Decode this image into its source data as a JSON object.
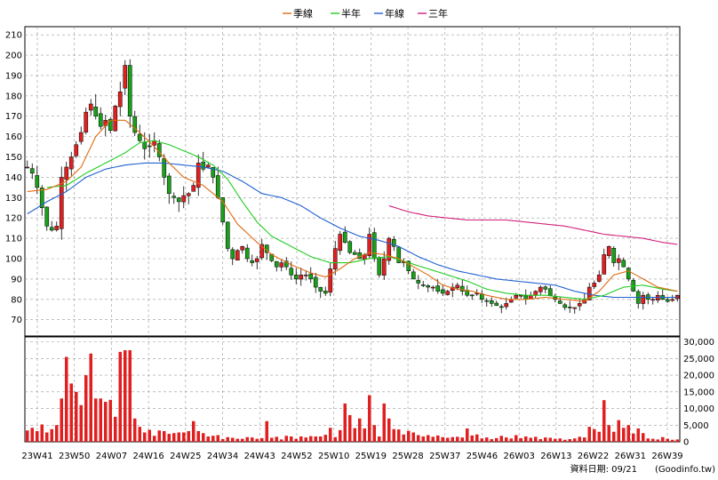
{
  "chart_data": {
    "type": "candlestick",
    "legend": {
      "position": "top-center",
      "items": [
        {
          "name": "季線",
          "color": "#e06a10"
        },
        {
          "name": "半年",
          "color": "#22cc22"
        },
        {
          "name": "年線",
          "color": "#2060d0"
        },
        {
          "name": "三年",
          "color": "#d0207a"
        }
      ]
    },
    "price_axis": {
      "ticks": [
        70,
        80,
        90,
        100,
        110,
        120,
        130,
        140,
        150,
        160,
        170,
        180,
        190,
        200,
        210
      ],
      "ylim": [
        62,
        214
      ]
    },
    "volume_axis": {
      "ticks": [
        0,
        5000,
        10000,
        15000,
        20000,
        25000,
        30000
      ],
      "tick_labels": [
        "0",
        "5,000",
        "10,000",
        "15,000",
        "20,000",
        "25,000",
        "30,000"
      ],
      "ylim": [
        0,
        31500
      ]
    },
    "x_ticks": [
      "23W41",
      "23W50",
      "24W07",
      "24W16",
      "24W25",
      "24W34",
      "24W43",
      "24W52",
      "25W10",
      "25W19",
      "25W28",
      "25W37",
      "25W46",
      "26W03",
      "26W13",
      "26W22",
      "26W31",
      "26W39"
    ],
    "colors": {
      "up": "#e02020",
      "down": "#18a018",
      "volume": "#e02020",
      "grid": "#9a9a9a"
    },
    "grid": true,
    "price_anchors": [
      [
        0,
        145
      ],
      [
        1,
        142
      ],
      [
        2,
        135
      ],
      [
        3,
        125
      ],
      [
        4,
        116
      ],
      [
        5,
        114
      ],
      [
        6,
        116
      ],
      [
        7,
        140
      ],
      [
        8,
        145
      ],
      [
        9,
        150
      ],
      [
        10,
        156
      ],
      [
        11,
        162
      ],
      [
        12,
        172
      ],
      [
        13,
        176
      ],
      [
        14,
        170
      ],
      [
        15,
        165
      ],
      [
        16,
        168
      ],
      [
        17,
        163
      ],
      [
        18,
        175
      ],
      [
        19,
        182
      ],
      [
        20,
        195
      ],
      [
        21,
        170
      ],
      [
        22,
        162
      ],
      [
        23,
        158
      ],
      [
        24,
        154
      ],
      [
        25,
        155
      ],
      [
        26,
        158
      ],
      [
        27,
        150
      ],
      [
        28,
        140
      ],
      [
        29,
        132
      ],
      [
        30,
        130
      ],
      [
        31,
        128
      ],
      [
        32,
        131
      ],
      [
        33,
        132
      ],
      [
        34,
        136
      ],
      [
        35,
        147
      ],
      [
        36,
        144
      ],
      [
        37,
        146
      ],
      [
        38,
        140
      ],
      [
        39,
        130
      ],
      [
        40,
        118
      ],
      [
        41,
        105
      ],
      [
        42,
        100
      ],
      [
        43,
        104
      ],
      [
        44,
        106
      ],
      [
        45,
        100
      ],
      [
        46,
        98
      ],
      [
        47,
        100
      ],
      [
        48,
        107
      ],
      [
        49,
        103
      ],
      [
        50,
        99
      ],
      [
        51,
        96
      ],
      [
        52,
        98
      ],
      [
        53,
        96
      ],
      [
        54,
        92
      ],
      [
        55,
        90
      ],
      [
        56,
        92
      ],
      [
        57,
        92
      ],
      [
        58,
        90
      ],
      [
        59,
        86
      ],
      [
        60,
        84
      ],
      [
        61,
        83
      ],
      [
        62,
        95
      ],
      [
        63,
        105
      ],
      [
        64,
        112
      ],
      [
        65,
        108
      ],
      [
        66,
        103
      ],
      [
        67,
        102
      ],
      [
        68,
        100
      ],
      [
        69,
        102
      ],
      [
        70,
        112
      ],
      [
        71,
        100
      ],
      [
        72,
        92
      ],
      [
        73,
        100
      ],
      [
        74,
        110
      ],
      [
        75,
        106
      ],
      [
        76,
        98
      ],
      [
        77,
        98
      ],
      [
        78,
        94
      ],
      [
        79,
        90
      ],
      [
        80,
        88
      ],
      [
        81,
        87
      ],
      [
        82,
        86
      ],
      [
        83,
        86
      ],
      [
        84,
        84
      ],
      [
        85,
        83
      ],
      [
        86,
        84
      ],
      [
        87,
        86
      ],
      [
        88,
        87
      ],
      [
        89,
        84
      ],
      [
        90,
        82
      ],
      [
        91,
        82
      ],
      [
        92,
        83
      ],
      [
        93,
        80
      ],
      [
        94,
        79
      ],
      [
        95,
        78
      ],
      [
        96,
        77
      ],
      [
        97,
        76
      ],
      [
        98,
        78
      ],
      [
        99,
        80
      ],
      [
        100,
        82
      ],
      [
        101,
        82
      ],
      [
        102,
        80
      ],
      [
        103,
        82
      ],
      [
        104,
        84
      ],
      [
        105,
        86
      ],
      [
        106,
        85
      ],
      [
        107,
        82
      ],
      [
        108,
        80
      ],
      [
        109,
        78
      ],
      [
        110,
        76
      ],
      [
        111,
        76
      ],
      [
        112,
        76
      ],
      [
        113,
        78
      ],
      [
        114,
        80
      ],
      [
        115,
        86
      ],
      [
        116,
        88
      ],
      [
        117,
        92
      ],
      [
        118,
        102
      ],
      [
        119,
        106
      ],
      [
        120,
        98
      ],
      [
        121,
        100
      ],
      [
        122,
        96
      ],
      [
        123,
        90
      ],
      [
        124,
        84
      ],
      [
        125,
        78
      ],
      [
        126,
        82
      ],
      [
        127,
        80
      ],
      [
        128,
        80
      ],
      [
        129,
        82
      ],
      [
        130,
        80
      ],
      [
        131,
        79
      ],
      [
        132,
        80
      ],
      [
        133,
        82
      ]
    ],
    "ma_quarter": [
      [
        0,
        133
      ],
      [
        4,
        134
      ],
      [
        8,
        138
      ],
      [
        11,
        145
      ],
      [
        14,
        160
      ],
      [
        17,
        168
      ],
      [
        20,
        168
      ],
      [
        23,
        162
      ],
      [
        26,
        155
      ],
      [
        29,
        147
      ],
      [
        32,
        140
      ],
      [
        36,
        136
      ],
      [
        40,
        128
      ],
      [
        43,
        117
      ],
      [
        47,
        108
      ],
      [
        50,
        102
      ],
      [
        54,
        97
      ],
      [
        58,
        93
      ],
      [
        61,
        91
      ],
      [
        64,
        95
      ],
      [
        67,
        100
      ],
      [
        70,
        103
      ],
      [
        73,
        102
      ],
      [
        76,
        100
      ],
      [
        79,
        96
      ],
      [
        82,
        92
      ],
      [
        85,
        87
      ],
      [
        88,
        85
      ],
      [
        91,
        84
      ],
      [
        94,
        82
      ],
      [
        98,
        80
      ],
      [
        102,
        80
      ],
      [
        106,
        81
      ],
      [
        110,
        80
      ],
      [
        114,
        79
      ],
      [
        117,
        84
      ],
      [
        120,
        92
      ],
      [
        123,
        94
      ],
      [
        126,
        90
      ],
      [
        129,
        86
      ],
      [
        133,
        84
      ]
    ],
    "ma_half": [
      [
        4,
        135
      ],
      [
        8,
        136
      ],
      [
        12,
        142
      ],
      [
        16,
        147
      ],
      [
        20,
        152
      ],
      [
        23,
        157
      ],
      [
        26,
        158
      ],
      [
        29,
        156
      ],
      [
        32,
        153
      ],
      [
        35,
        150
      ],
      [
        38,
        146
      ],
      [
        41,
        139
      ],
      [
        44,
        128
      ],
      [
        47,
        118
      ],
      [
        50,
        111
      ],
      [
        54,
        106
      ],
      [
        58,
        101
      ],
      [
        62,
        98
      ],
      [
        66,
        98
      ],
      [
        70,
        100
      ],
      [
        74,
        101
      ],
      [
        78,
        98
      ],
      [
        82,
        95
      ],
      [
        86,
        92
      ],
      [
        90,
        89
      ],
      [
        94,
        85
      ],
      [
        98,
        83
      ],
      [
        102,
        82
      ],
      [
        106,
        82
      ],
      [
        110,
        81
      ],
      [
        114,
        80
      ],
      [
        118,
        82
      ],
      [
        122,
        86
      ],
      [
        126,
        87
      ],
      [
        130,
        85
      ],
      [
        133,
        84
      ]
    ],
    "ma_year": [
      [
        0,
        122
      ],
      [
        4,
        128
      ],
      [
        8,
        133
      ],
      [
        12,
        140
      ],
      [
        16,
        144
      ],
      [
        20,
        146
      ],
      [
        24,
        147
      ],
      [
        28,
        147
      ],
      [
        32,
        146
      ],
      [
        36,
        145
      ],
      [
        40,
        143
      ],
      [
        44,
        138
      ],
      [
        48,
        132
      ],
      [
        52,
        130
      ],
      [
        56,
        126
      ],
      [
        60,
        120
      ],
      [
        64,
        115
      ],
      [
        68,
        111
      ],
      [
        72,
        109
      ],
      [
        76,
        106
      ],
      [
        80,
        101
      ],
      [
        84,
        97
      ],
      [
        88,
        94
      ],
      [
        92,
        92
      ],
      [
        96,
        90
      ],
      [
        100,
        89
      ],
      [
        104,
        88
      ],
      [
        108,
        87
      ],
      [
        112,
        84
      ],
      [
        116,
        82
      ],
      [
        120,
        81
      ],
      [
        124,
        81
      ],
      [
        128,
        81
      ],
      [
        133,
        81
      ]
    ],
    "ma_3year": [
      [
        74,
        126
      ],
      [
        78,
        123
      ],
      [
        82,
        121
      ],
      [
        86,
        120
      ],
      [
        90,
        119
      ],
      [
        94,
        119
      ],
      [
        98,
        119
      ],
      [
        102,
        118
      ],
      [
        106,
        117
      ],
      [
        110,
        116
      ],
      [
        114,
        114
      ],
      [
        118,
        112
      ],
      [
        122,
        111
      ],
      [
        126,
        110
      ],
      [
        130,
        108
      ],
      [
        133,
        107
      ]
    ],
    "volume_pattern": [
      [
        0,
        3400
      ],
      [
        1,
        4200
      ],
      [
        2,
        3200
      ],
      [
        3,
        5200
      ],
      [
        4,
        2800
      ],
      [
        5,
        3800
      ],
      [
        6,
        5000
      ],
      [
        7,
        13000
      ],
      [
        8,
        25500
      ],
      [
        9,
        17500
      ],
      [
        10,
        15000
      ],
      [
        11,
        11000
      ],
      [
        12,
        20000
      ],
      [
        13,
        26500
      ],
      [
        14,
        13000
      ],
      [
        15,
        13000
      ],
      [
        16,
        12000
      ],
      [
        17,
        12600
      ],
      [
        18,
        7500
      ],
      [
        19,
        27000
      ],
      [
        20,
        27500
      ],
      [
        21,
        27500
      ],
      [
        22,
        7000
      ],
      [
        23,
        4500
      ],
      [
        24,
        2800
      ],
      [
        25,
        3600
      ],
      [
        26,
        1800
      ],
      [
        27,
        3400
      ],
      [
        28,
        3200
      ],
      [
        29,
        2400
      ],
      [
        30,
        2600
      ],
      [
        31,
        2800
      ],
      [
        32,
        2800
      ],
      [
        33,
        3200
      ],
      [
        34,
        6200
      ],
      [
        35,
        3200
      ],
      [
        36,
        2600
      ],
      [
        37,
        1600
      ],
      [
        38,
        1800
      ],
      [
        39,
        2000
      ],
      [
        40,
        800
      ],
      [
        41,
        1400
      ],
      [
        42,
        1200
      ],
      [
        43,
        900
      ],
      [
        44,
        900
      ],
      [
        45,
        1400
      ],
      [
        46,
        1300
      ],
      [
        47,
        900
      ],
      [
        48,
        1100
      ],
      [
        49,
        6200
      ],
      [
        50,
        1200
      ],
      [
        51,
        1500
      ],
      [
        52,
        700
      ],
      [
        53,
        1800
      ],
      [
        54,
        1600
      ],
      [
        55,
        900
      ],
      [
        56,
        1600
      ],
      [
        57,
        1300
      ],
      [
        58,
        1700
      ],
      [
        59,
        1600
      ],
      [
        60,
        1600
      ],
      [
        61,
        2100
      ],
      [
        62,
        4200
      ],
      [
        63,
        1400
      ],
      [
        64,
        3500
      ],
      [
        65,
        11500
      ],
      [
        66,
        8000
      ],
      [
        67,
        4100
      ],
      [
        68,
        7000
      ],
      [
        69,
        4000
      ],
      [
        70,
        14000
      ],
      [
        71,
        5000
      ],
      [
        72,
        1600
      ],
      [
        73,
        11500
      ],
      [
        74,
        7000
      ],
      [
        75,
        3800
      ],
      [
        76,
        3700
      ],
      [
        77,
        2200
      ],
      [
        78,
        3300
      ],
      [
        79,
        2800
      ],
      [
        80,
        2000
      ],
      [
        81,
        1600
      ],
      [
        82,
        2000
      ],
      [
        83,
        1500
      ],
      [
        84,
        1900
      ],
      [
        85,
        1400
      ],
      [
        86,
        1200
      ],
      [
        87,
        1400
      ],
      [
        88,
        1500
      ],
      [
        89,
        1300
      ],
      [
        90,
        4000
      ],
      [
        91,
        1900
      ],
      [
        92,
        2200
      ],
      [
        93,
        1000
      ],
      [
        94,
        1300
      ],
      [
        95,
        800
      ],
      [
        96,
        1100
      ],
      [
        97,
        1800
      ],
      [
        98,
        1300
      ],
      [
        99,
        1000
      ],
      [
        100,
        2000
      ],
      [
        101,
        1100
      ],
      [
        102,
        1600
      ],
      [
        103,
        1200
      ],
      [
        104,
        1500
      ],
      [
        105,
        800
      ],
      [
        106,
        1300
      ],
      [
        107,
        1200
      ],
      [
        108,
        900
      ],
      [
        109,
        1000
      ],
      [
        110,
        600
      ],
      [
        111,
        800
      ],
      [
        112,
        1000
      ],
      [
        113,
        1500
      ],
      [
        114,
        1300
      ],
      [
        115,
        4500
      ],
      [
        116,
        3800
      ],
      [
        117,
        3000
      ],
      [
        118,
        12500
      ],
      [
        119,
        5000
      ],
      [
        120,
        3000
      ],
      [
        121,
        6500
      ],
      [
        122,
        4200
      ],
      [
        123,
        5000
      ],
      [
        124,
        2500
      ],
      [
        125,
        4000
      ],
      [
        126,
        2600
      ],
      [
        127,
        1000
      ],
      [
        128,
        900
      ],
      [
        129,
        700
      ],
      [
        130,
        1400
      ],
      [
        131,
        900
      ],
      [
        132,
        600
      ],
      [
        133,
        700
      ]
    ],
    "bar_count": 134
  },
  "footer": {
    "label": "資料日期: 09/21",
    "source": "(Goodinfo.tw)"
  }
}
